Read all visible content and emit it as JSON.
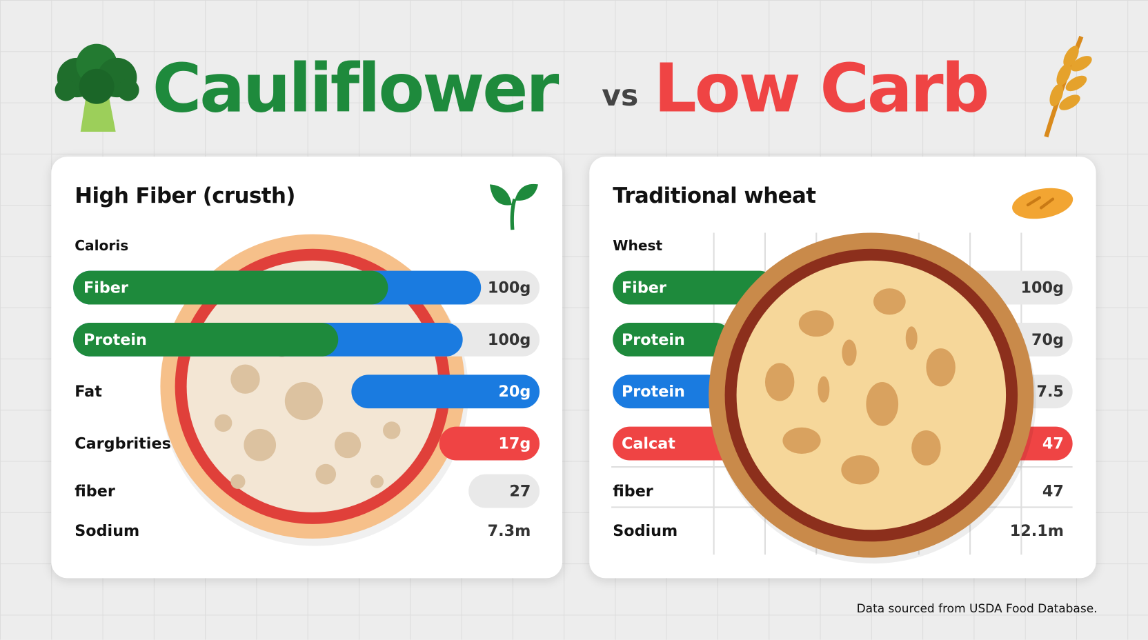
{
  "header": {
    "title_left": "Cauliflower",
    "vs": "vs",
    "title_right": "Low Carb"
  },
  "panels": [
    {
      "title": "High Fiber (crusth)",
      "subtitle": "Caloris",
      "rows": [
        {
          "label": "Fiber",
          "value": "100g"
        },
        {
          "label": "Protein",
          "value": "100g"
        },
        {
          "label": "Fat",
          "value": "20g"
        },
        {
          "label": "Cargbrities",
          "value": "17g"
        },
        {
          "label": "fiber",
          "value": "27"
        },
        {
          "label": "Sodium",
          "value": "7.3m"
        }
      ]
    },
    {
      "title": "Traditional wheat",
      "subtitle": "Whest",
      "rows": [
        {
          "label": "Fiber",
          "value": "100g"
        },
        {
          "label": "Protein",
          "value": "70g"
        },
        {
          "label": "Protein",
          "value": "7.5"
        },
        {
          "label": "Calcat",
          "value": "47"
        },
        {
          "label": "fiber",
          "value": "47"
        },
        {
          "label": "Sodium",
          "value": "12.1m"
        }
      ]
    }
  ],
  "footer": "Data sourced from USDA Food Database."
}
